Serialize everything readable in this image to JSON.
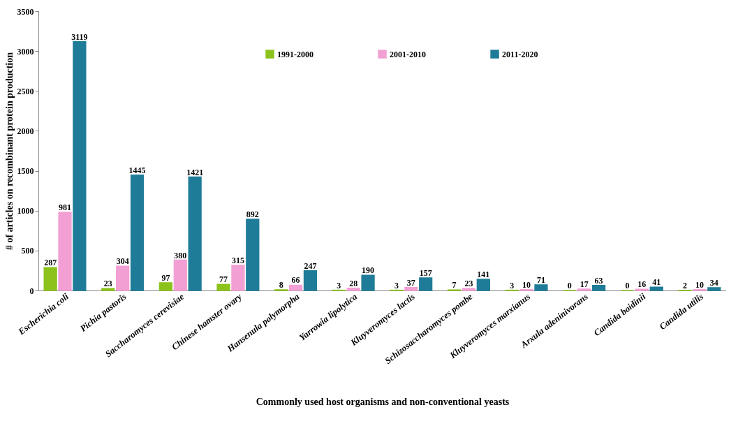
{
  "chart_data": {
    "type": "bar",
    "xlabel": "Commonly used host organisms and non-conventional yeasts",
    "ylabel": "# of articles on recombinant protein production",
    "categories": [
      "Escherichia coli",
      "Pichia pastoris",
      "Saccharomyces cerevisiae",
      "Chinese hamster ovary",
      "Hansenula polymorpha",
      "Yarrowia lipolytica",
      "Kluyveromyces lactis",
      "Schizosaccharomyces pombe",
      "Kluyveromyces marxianus",
      "Arxula adeninivorans",
      "Candida boidinii",
      "Candida utilis"
    ],
    "series": [
      {
        "name": "1991-2000",
        "color": "#8cc21c",
        "values": [
          287,
          23,
          97,
          77,
          8,
          3,
          3,
          7,
          3,
          0,
          0,
          2
        ]
      },
      {
        "name": "2001-2010",
        "color": "#f2a0d4",
        "values": [
          981,
          304,
          380,
          315,
          66,
          28,
          37,
          23,
          10,
          17,
          16,
          10
        ]
      },
      {
        "name": "2011-2020",
        "color": "#1f7c98",
        "values": [
          3119,
          1445,
          1421,
          892,
          247,
          190,
          157,
          141,
          71,
          63,
          41,
          34
        ]
      }
    ],
    "ylim": [
      0,
      3500
    ],
    "yticks": [
      0,
      500,
      1000,
      1500,
      2000,
      2500,
      3000,
      3500
    ],
    "data_labels": true,
    "legend": "top",
    "grid": false
  }
}
